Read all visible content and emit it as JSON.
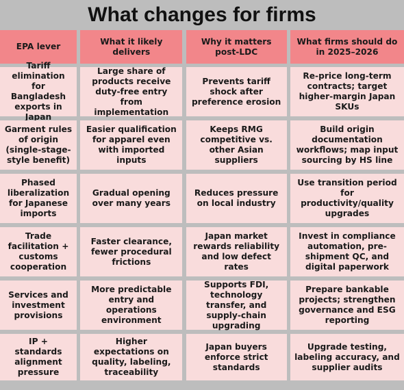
{
  "title": "What changes for firms",
  "headers": [
    "EPA lever",
    "What it likely delivers",
    "Why it matters post-LDC",
    "What firms should do in 2025–2026"
  ],
  "rows": [
    [
      "Tariff elimination for Bangladesh exports in Japan",
      "Large share of products receive duty-free entry from implementation",
      "Prevents tariff shock after preference erosion",
      "Re-price long-term contracts; target higher-margin Japan SKUs"
    ],
    [
      "Garment rules of origin (single-stage-style benefit)",
      "Easier qualification for apparel even with imported inputs",
      "Keeps RMG competitive vs. other Asian suppliers",
      "Build origin documentation workflows; map input sourcing by HS line"
    ],
    [
      "Phased liberalization for Japanese imports",
      "Gradual opening over many years",
      "Reduces pressure on local industry",
      "Use transition period for productivity/quality upgrades"
    ],
    [
      "Trade facilitation + customs cooperation",
      "Faster clearance, fewer procedural frictions",
      "Japan market rewards reliability and low defect rates",
      "Invest in compliance automation, pre-shipment QC, and digital paperwork"
    ],
    [
      "Services and investment provisions",
      "More predictable entry and operations environment",
      "Supports FDI, technology transfer, and supply-chain upgrading",
      "Prepare bankable projects; strengthen governance and ESG reporting"
    ],
    [
      "IP + standards alignment pressure",
      "Higher expectations on quality, labeling, traceability",
      "Japan buyers enforce strict standards",
      "Upgrade testing, labeling accuracy, and supplier audits"
    ]
  ]
}
